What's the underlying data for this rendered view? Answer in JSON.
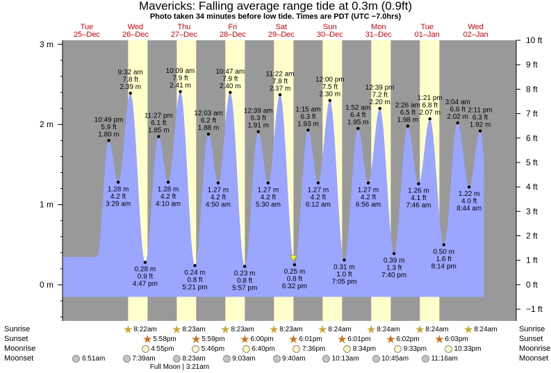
{
  "header": {
    "title": "Mavericks: Falling average range tide at 0.3m (0.9ft)",
    "subtitle": "Photo taken 34 minutes before low tide. Times are PDT (UTC −7.0hrs)"
  },
  "colors": {
    "day_band": "#ffffcc",
    "night_band": "#999999",
    "tide_fill": "#9aa6ff",
    "date_label": "#dd0000",
    "marker": "#f3f320"
  },
  "chart_data": {
    "type": "area",
    "title": "Mavericks: Falling average range tide at 0.3m (0.9ft)",
    "subtitle": "Photo taken 34 minutes before low tide. Times are PDT (UTC −7.0hrs)",
    "x_unit": "hours since 25-Dec 00:00 PDT",
    "y_left_unit": "m",
    "y_right_unit": "ft",
    "ylim_m": [
      -0.45,
      3.05
    ],
    "ylim_ft": [
      -1.48,
      10.0
    ],
    "left_ticks": [
      {
        "v": 0,
        "label": "0 m"
      },
      {
        "v": 1,
        "label": "1 m"
      },
      {
        "v": 2,
        "label": "2 m"
      },
      {
        "v": 3,
        "label": "3 m"
      }
    ],
    "right_ticks": [
      {
        "v": -1,
        "label": "−1 ft"
      },
      {
        "v": 0,
        "label": "0 ft"
      },
      {
        "v": 1,
        "label": "1 ft"
      },
      {
        "v": 2,
        "label": "2 ft"
      },
      {
        "v": 3,
        "label": "3 ft"
      },
      {
        "v": 4,
        "label": "4 ft"
      },
      {
        "v": 5,
        "label": "5 ft"
      },
      {
        "v": 6,
        "label": "6 ft"
      },
      {
        "v": 7,
        "label": "7 ft"
      },
      {
        "v": 8,
        "label": "8 ft"
      },
      {
        "v": 9,
        "label": "9 ft"
      },
      {
        "v": 10,
        "label": "10 ft"
      }
    ],
    "x_range_hours": [
      0,
      224
    ],
    "days": [
      {
        "dow": "Tue",
        "date": "25–Dec"
      },
      {
        "dow": "Wed",
        "date": "26–Dec"
      },
      {
        "dow": "Thu",
        "date": "27–Dec"
      },
      {
        "dow": "Fri",
        "date": "28–Dec"
      },
      {
        "dow": "Sat",
        "date": "29–Dec"
      },
      {
        "dow": "Sun",
        "date": "30–Dec"
      },
      {
        "dow": "Mon",
        "date": "31–Dec"
      },
      {
        "dow": "Tue",
        "date": "01–Jan"
      },
      {
        "dow": "Wed",
        "date": "02–Jan"
      }
    ],
    "daylight_hours": [
      [
        32.37,
        41.97
      ],
      [
        56.38,
        65.98
      ],
      [
        80.38,
        90.0
      ],
      [
        104.38,
        114.02
      ],
      [
        128.4,
        138.02
      ],
      [
        152.4,
        162.03
      ],
      [
        176.4,
        186.05
      ]
    ],
    "tide_range_hours": [
      0,
      208
    ],
    "extremes": [
      {
        "t": 22.82,
        "m": 1.8,
        "time": "10:49 pm",
        "ft": "5.9 ft",
        "mlabel": "1.80 m",
        "type": "high"
      },
      {
        "t": 27.48,
        "m": 1.28,
        "time": "3:29 am",
        "ft": "4.2 ft",
        "mlabel": "1.28 m",
        "type": "low"
      },
      {
        "t": 33.53,
        "m": 2.39,
        "time": "9:32 am",
        "ft": "7.8 ft",
        "mlabel": "2.39 m",
        "type": "high"
      },
      {
        "t": 40.78,
        "m": 0.28,
        "time": "4:47 pm",
        "ft": "0.9 ft",
        "mlabel": "0.28 m",
        "type": "low"
      },
      {
        "t": 47.45,
        "m": 1.85,
        "time": "11:27 pm",
        "ft": "6.1 ft",
        "mlabel": "1.85 m",
        "type": "high"
      },
      {
        "t": 52.17,
        "m": 1.28,
        "time": "4:10 am",
        "ft": "4.2 ft",
        "mlabel": "1.28 m",
        "type": "low"
      },
      {
        "t": 58.15,
        "m": 2.41,
        "time": "10:09 am",
        "ft": "7.9 ft",
        "mlabel": "2.41 m",
        "type": "high"
      },
      {
        "t": 65.35,
        "m": 0.24,
        "time": "5:21 pm",
        "ft": "0.8 ft",
        "mlabel": "0.24 m",
        "type": "low"
      },
      {
        "t": 72.05,
        "m": 1.88,
        "time": "12:03 am",
        "ft": "6.2 ft",
        "mlabel": "1.88 m",
        "type": "high"
      },
      {
        "t": 76.83,
        "m": 1.27,
        "time": "4:50 am",
        "ft": "4.2 ft",
        "mlabel": "1.27 m",
        "type": "low"
      },
      {
        "t": 82.78,
        "m": 2.4,
        "time": "10:47 am",
        "ft": "7.9 ft",
        "mlabel": "2.40 m",
        "type": "high"
      },
      {
        "t": 89.95,
        "m": 0.23,
        "time": "5:57 pm",
        "ft": "0.8 ft",
        "mlabel": "0.23 m",
        "type": "low"
      },
      {
        "t": 96.65,
        "m": 1.91,
        "time": "12:39 am",
        "ft": "6.3 ft",
        "mlabel": "1.91 m",
        "type": "high"
      },
      {
        "t": 101.5,
        "m": 1.27,
        "time": "5:30 am",
        "ft": "4.2 ft",
        "mlabel": "1.27 m",
        "type": "low"
      },
      {
        "t": 107.37,
        "m": 2.37,
        "time": "11:22 am",
        "ft": "7.8 ft",
        "mlabel": "2.37 m",
        "type": "high"
      },
      {
        "t": 114.53,
        "m": 0.25,
        "time": "6:32 pm",
        "ft": "0.8 ft",
        "mlabel": "0.25 m",
        "type": "low"
      },
      {
        "t": 121.25,
        "m": 1.93,
        "time": "1:15 am",
        "ft": "6.3 ft",
        "mlabel": "1.93 m",
        "type": "high"
      },
      {
        "t": 126.2,
        "m": 1.27,
        "time": "6:12 am",
        "ft": "4.2 ft",
        "mlabel": "1.27 m",
        "type": "low"
      },
      {
        "t": 132.0,
        "m": 2.3,
        "time": "12:00 pm",
        "ft": "7.5 ft",
        "mlabel": "2.30 m",
        "type": "high"
      },
      {
        "t": 139.08,
        "m": 0.31,
        "time": "7:05 pm",
        "ft": "1.0 ft",
        "mlabel": "0.31 m",
        "type": "low"
      },
      {
        "t": 145.87,
        "m": 1.95,
        "time": "1:52 am",
        "ft": "6.4 ft",
        "mlabel": "1.95 m",
        "type": "high"
      },
      {
        "t": 150.93,
        "m": 1.27,
        "time": "6:56 am",
        "ft": "4.2 ft",
        "mlabel": "1.27 m",
        "type": "low"
      },
      {
        "t": 156.65,
        "m": 2.2,
        "time": "12:39 pm",
        "ft": "7.2 ft",
        "mlabel": "2.20 m",
        "type": "high"
      },
      {
        "t": 163.67,
        "m": 0.39,
        "time": "7:40 pm",
        "ft": "1.3 ft",
        "mlabel": "0.39 m",
        "type": "low"
      },
      {
        "t": 170.43,
        "m": 1.98,
        "time": "2:26 am",
        "ft": "6.5 ft",
        "mlabel": "1.98 m",
        "type": "high"
      },
      {
        "t": 175.77,
        "m": 1.26,
        "time": "7:46 am",
        "ft": "4.1 ft",
        "mlabel": "1.26 m",
        "type": "low"
      },
      {
        "t": 181.35,
        "m": 2.07,
        "time": "1:21 pm",
        "ft": "6.8 ft",
        "mlabel": "2.07 m",
        "type": "high"
      },
      {
        "t": 188.23,
        "m": 0.5,
        "time": "8:14 pm",
        "ft": "1.6 ft",
        "mlabel": "0.50 m",
        "type": "low"
      },
      {
        "t": 195.07,
        "m": 2.02,
        "time": "3:04 am",
        "ft": "6.6 ft",
        "mlabel": "2.02 m",
        "type": "high"
      },
      {
        "t": 200.73,
        "m": 1.22,
        "time": "8:44 am",
        "ft": "4.0 ft",
        "mlabel": "1.22 m",
        "type": "low"
      },
      {
        "t": 206.18,
        "m": 1.92,
        "time": "2:11 pm",
        "ft": "6.3 ft",
        "mlabel": "1.92 m",
        "type": "high"
      }
    ],
    "photo_marker": {
      "t": 113.97,
      "m": 0.3,
      "label": "0.3m (0.9ft)"
    }
  },
  "almanac": {
    "rows": [
      {
        "label": "Sunrise",
        "kind": "sunrise",
        "events": [
          {
            "t": 32.37,
            "text": "8:22am"
          },
          {
            "t": 56.38,
            "text": "8:23am"
          },
          {
            "t": 80.38,
            "text": "8:23am"
          },
          {
            "t": 104.38,
            "text": "8:23am"
          },
          {
            "t": 128.4,
            "text": "8:24am"
          },
          {
            "t": 152.4,
            "text": "8:24am"
          },
          {
            "t": 176.4,
            "text": "8:24am"
          },
          {
            "t": 200.4,
            "text": "8:24am"
          }
        ]
      },
      {
        "label": "Sunset",
        "kind": "sunset",
        "events": [
          {
            "t": 41.97,
            "text": "5:58pm"
          },
          {
            "t": 65.98,
            "text": "5:59pm"
          },
          {
            "t": 90.0,
            "text": "6:00pm"
          },
          {
            "t": 114.02,
            "text": "6:01pm"
          },
          {
            "t": 138.02,
            "text": "6:01pm"
          },
          {
            "t": 162.03,
            "text": "6:02pm"
          },
          {
            "t": 186.05,
            "text": "6:03pm"
          }
        ]
      },
      {
        "label": "Moonrise",
        "kind": "moonrise",
        "events": [
          {
            "t": 40.9,
            "text": "4:55pm"
          },
          {
            "t": 65.77,
            "text": "5:46pm"
          },
          {
            "t": 90.67,
            "text": "6:40pm"
          },
          {
            "t": 115.6,
            "text": "7:36pm"
          },
          {
            "t": 140.57,
            "text": "8:34pm"
          },
          {
            "t": 165.55,
            "text": "9:33pm"
          },
          {
            "t": 190.55,
            "text": "10:33pm"
          }
        ]
      },
      {
        "label": "Moonset",
        "kind": "moonset",
        "events": [
          {
            "t": 6.85,
            "text": "6:51am"
          },
          {
            "t": 31.65,
            "text": "7:39am"
          },
          {
            "t": 56.38,
            "text": "8:23am"
          },
          {
            "t": 81.05,
            "text": "9:03am"
          },
          {
            "t": 105.67,
            "text": "9:40am"
          },
          {
            "t": 130.22,
            "text": "10:13am"
          },
          {
            "t": 154.75,
            "text": "10:45am"
          },
          {
            "t": 179.27,
            "text": "11:16am"
          }
        ]
      }
    ],
    "full_moon_note": "Full Moon | 3:21am",
    "full_moon_t": 51.35
  }
}
